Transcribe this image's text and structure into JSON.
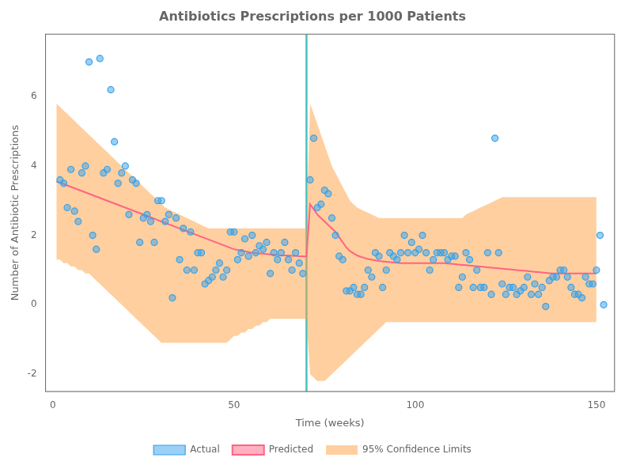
{
  "chart_data": {
    "type": "line",
    "title": "Antibiotics Prescriptions per 1000 Patients",
    "xlabel": "Time (weeks)",
    "ylabel": "Number of Antibiotic Prescriptions",
    "xlim": [
      -2,
      155
    ],
    "ylim": [
      -2.5,
      7.8
    ],
    "xticks": [
      0,
      50,
      100,
      150
    ],
    "yticks": [
      -2,
      0,
      2,
      4,
      6
    ],
    "grid": false,
    "legend": "bottom",
    "intervention_x": 70,
    "series": [
      {
        "name": "Actual",
        "type": "scatter",
        "x": [
          2,
          3,
          4,
          5,
          6,
          7,
          8,
          9,
          10,
          11,
          12,
          13,
          14,
          15,
          16,
          17,
          18,
          19,
          20,
          21,
          22,
          23,
          24,
          25,
          26,
          27,
          28,
          29,
          30,
          31,
          32,
          33,
          34,
          35,
          36,
          37,
          38,
          39,
          40,
          41,
          42,
          43,
          44,
          45,
          46,
          47,
          48,
          49,
          50,
          51,
          52,
          53,
          54,
          55,
          56,
          57,
          58,
          59,
          60,
          61,
          62,
          63,
          64,
          65,
          66,
          67,
          68,
          69,
          71,
          72,
          73,
          74,
          75,
          76,
          77,
          78,
          79,
          80,
          81,
          82,
          83,
          84,
          85,
          86,
          87,
          88,
          89,
          90,
          91,
          92,
          93,
          94,
          95,
          96,
          97,
          98,
          99,
          100,
          101,
          102,
          103,
          104,
          105,
          106,
          107,
          108,
          109,
          110,
          111,
          112,
          113,
          114,
          115,
          116,
          117,
          118,
          119,
          120,
          121,
          122,
          123,
          124,
          125,
          126,
          127,
          128,
          129,
          130,
          131,
          132,
          133,
          134,
          135,
          136,
          137,
          138,
          139,
          140,
          141,
          142,
          143,
          144,
          145,
          146,
          147,
          148,
          149,
          150,
          151,
          152
        ],
        "values": [
          3.6,
          3.5,
          2.8,
          3.9,
          2.7,
          2.4,
          3.8,
          4.0,
          7.0,
          2.0,
          1.6,
          7.1,
          3.8,
          3.9,
          6.2,
          4.7,
          3.5,
          3.8,
          4.0,
          2.6,
          3.6,
          3.5,
          1.8,
          2.5,
          2.6,
          2.4,
          1.8,
          3.0,
          3.0,
          2.4,
          2.6,
          0.2,
          2.5,
          1.3,
          2.2,
          1.0,
          2.1,
          1.0,
          1.5,
          1.5,
          0.6,
          0.7,
          0.8,
          1.0,
          1.2,
          0.8,
          1.0,
          2.1,
          2.1,
          1.3,
          1.5,
          1.9,
          1.4,
          2.0,
          1.5,
          1.7,
          1.6,
          1.8,
          0.9,
          1.5,
          1.3,
          1.5,
          1.8,
          1.3,
          1.0,
          1.5,
          1.2,
          0.9,
          3.6,
          4.8,
          2.8,
          2.9,
          3.3,
          3.2,
          2.5,
          2.0,
          1.4,
          1.3,
          0.4,
          0.4,
          0.5,
          0.3,
          0.3,
          0.5,
          1.0,
          0.8,
          1.5,
          1.4,
          0.5,
          1.0,
          1.5,
          1.4,
          1.3,
          1.5,
          2.0,
          1.5,
          1.8,
          1.5,
          1.6,
          2.0,
          1.5,
          1.0,
          1.3,
          1.5,
          1.5,
          1.5,
          1.3,
          1.4,
          1.4,
          0.5,
          0.8,
          1.5,
          1.3,
          0.5,
          1.0,
          0.5,
          0.5,
          1.5,
          0.3,
          4.8,
          1.5,
          0.6,
          0.3,
          0.5,
          0.5,
          0.3,
          0.4,
          0.5,
          0.8,
          0.3,
          0.6,
          0.3,
          0.5,
          -0.05,
          0.7,
          0.8,
          0.8,
          1.0,
          1.0,
          0.8,
          0.5,
          0.3,
          0.3,
          0.2,
          0.8,
          0.6,
          0.6,
          1.0,
          2.0,
          0.0
        ]
      },
      {
        "name": "Predicted",
        "type": "line",
        "x": [
          1,
          2,
          3,
          4,
          5,
          6,
          7,
          8,
          9,
          10,
          11,
          12,
          13,
          14,
          15,
          16,
          17,
          18,
          19,
          20,
          21,
          22,
          23,
          24,
          25,
          26,
          27,
          28,
          29,
          30,
          31,
          32,
          33,
          34,
          35,
          36,
          37,
          38,
          39,
          40,
          41,
          42,
          43,
          44,
          45,
          46,
          47,
          48,
          49,
          50,
          51,
          52,
          53,
          54,
          55,
          56,
          57,
          58,
          59,
          60,
          61,
          62,
          63,
          64,
          65,
          66,
          67,
          68,
          69,
          70,
          71,
          72,
          73,
          74,
          75,
          76,
          77,
          78,
          79,
          80,
          81,
          82,
          83,
          84,
          85,
          86,
          87,
          88,
          89,
          90,
          91,
          92,
          93,
          94,
          95,
          96,
          97,
          98,
          99,
          100,
          101,
          102,
          103,
          104,
          105,
          106,
          107,
          108,
          109,
          110,
          111,
          112,
          113,
          114,
          115,
          116,
          117,
          118,
          119,
          120,
          121,
          122,
          123,
          124,
          125,
          126,
          127,
          128,
          129,
          130,
          131,
          132,
          133,
          134,
          135,
          136,
          137,
          138,
          139,
          140,
          141,
          142,
          143,
          144,
          145,
          146,
          147,
          148,
          149,
          150
        ],
        "values": [
          3.55,
          3.52,
          3.48,
          3.44,
          3.4,
          3.36,
          3.32,
          3.28,
          3.24,
          3.2,
          3.16,
          3.12,
          3.08,
          3.04,
          3.0,
          2.96,
          2.92,
          2.88,
          2.84,
          2.8,
          2.76,
          2.72,
          2.68,
          2.64,
          2.6,
          2.56,
          2.52,
          2.48,
          2.44,
          2.4,
          2.36,
          2.32,
          2.28,
          2.24,
          2.2,
          2.16,
          2.12,
          2.08,
          2.04,
          2.0,
          1.96,
          1.92,
          1.88,
          1.84,
          1.8,
          1.76,
          1.72,
          1.68,
          1.64,
          1.6,
          1.58,
          1.56,
          1.54,
          1.52,
          1.5,
          1.49,
          1.48,
          1.47,
          1.46,
          1.45,
          1.44,
          1.43,
          1.42,
          1.42,
          1.42,
          1.41,
          1.41,
          1.4,
          1.4,
          1.39,
          2.9,
          2.75,
          2.6,
          2.5,
          2.4,
          2.3,
          2.2,
          2.1,
          1.95,
          1.8,
          1.65,
          1.55,
          1.48,
          1.42,
          1.38,
          1.35,
          1.32,
          1.3,
          1.28,
          1.26,
          1.25,
          1.24,
          1.23,
          1.22,
          1.21,
          1.2,
          1.2,
          1.2,
          1.2,
          1.2,
          1.2,
          1.2,
          1.2,
          1.2,
          1.2,
          1.2,
          1.2,
          1.2,
          1.19,
          1.18,
          1.17,
          1.16,
          1.15,
          1.14,
          1.13,
          1.12,
          1.11,
          1.1,
          1.09,
          1.08,
          1.07,
          1.06,
          1.05,
          1.04,
          1.03,
          1.02,
          1.01,
          1.0,
          0.99,
          0.98,
          0.97,
          0.96,
          0.95,
          0.94,
          0.93,
          0.92,
          0.91,
          0.9,
          0.9,
          0.9,
          0.9,
          0.9,
          0.9,
          0.9,
          0.9,
          0.9,
          0.9,
          0.9,
          0.9,
          0.9
        ]
      },
      {
        "name": "95% Confidence Limits",
        "type": "area",
        "x": [
          1,
          2,
          3,
          4,
          5,
          6,
          7,
          8,
          9,
          10,
          11,
          12,
          13,
          14,
          15,
          16,
          17,
          18,
          19,
          20,
          21,
          22,
          23,
          24,
          25,
          26,
          27,
          28,
          29,
          30,
          31,
          32,
          33,
          34,
          35,
          36,
          37,
          38,
          39,
          40,
          41,
          42,
          43,
          44,
          45,
          46,
          47,
          48,
          49,
          50,
          51,
          52,
          53,
          54,
          55,
          56,
          57,
          58,
          59,
          60,
          61,
          62,
          63,
          64,
          65,
          66,
          67,
          68,
          69,
          70,
          71,
          72,
          73,
          74,
          75,
          76,
          77,
          78,
          79,
          80,
          81,
          82,
          83,
          84,
          85,
          86,
          87,
          88,
          89,
          90,
          91,
          92,
          93,
          94,
          95,
          96,
          97,
          98,
          99,
          100,
          101,
          102,
          103,
          104,
          105,
          106,
          107,
          108,
          109,
          110,
          111,
          112,
          113,
          114,
          115,
          116,
          117,
          118,
          119,
          120,
          121,
          122,
          123,
          124,
          125,
          126,
          127,
          128,
          129,
          130,
          131,
          132,
          133,
          134,
          135,
          136,
          137,
          138,
          139,
          140,
          141,
          142,
          143,
          144,
          145,
          146,
          147,
          148,
          149,
          150
        ],
        "upper": [
          5.8,
          5.7,
          5.6,
          5.5,
          5.4,
          5.3,
          5.2,
          5.1,
          5.0,
          4.9,
          4.8,
          4.7,
          4.6,
          4.5,
          4.4,
          4.3,
          4.2,
          4.1,
          4.0,
          3.9,
          3.8,
          3.7,
          3.6,
          3.5,
          3.4,
          3.3,
          3.2,
          3.1,
          3.0,
          2.9,
          2.8,
          2.75,
          2.7,
          2.65,
          2.6,
          2.55,
          2.5,
          2.45,
          2.4,
          2.35,
          2.3,
          2.25,
          2.2,
          2.2,
          2.2,
          2.2,
          2.2,
          2.2,
          2.2,
          2.2,
          2.2,
          2.2,
          2.2,
          2.2,
          2.2,
          2.2,
          2.2,
          2.2,
          2.2,
          2.2,
          2.2,
          2.2,
          2.2,
          2.2,
          2.2,
          2.2,
          2.2,
          2.2,
          2.2,
          2.2,
          5.8,
          5.5,
          5.2,
          4.9,
          4.6,
          4.3,
          4.0,
          3.8,
          3.6,
          3.4,
          3.2,
          3.0,
          2.9,
          2.8,
          2.75,
          2.7,
          2.65,
          2.6,
          2.55,
          2.5,
          2.5,
          2.5,
          2.5,
          2.5,
          2.5,
          2.5,
          2.5,
          2.5,
          2.5,
          2.5,
          2.5,
          2.5,
          2.5,
          2.5,
          2.5,
          2.5,
          2.5,
          2.5,
          2.5,
          2.5,
          2.5,
          2.5,
          2.5,
          2.6,
          2.65,
          2.7,
          2.75,
          2.8,
          2.85,
          2.9,
          2.95,
          3.0,
          3.05,
          3.1,
          3.1,
          3.1,
          3.1,
          3.1,
          3.1,
          3.1,
          3.1,
          3.1,
          3.1,
          3.1,
          3.1,
          3.1,
          3.1,
          3.1,
          3.1,
          3.1,
          3.1,
          3.1,
          3.1,
          3.1,
          3.1,
          3.1,
          3.1,
          3.1,
          3.1,
          3.1
        ],
        "lower": [
          1.3,
          1.3,
          1.2,
          1.2,
          1.1,
          1.1,
          1.0,
          1.0,
          0.9,
          0.9,
          0.8,
          0.7,
          0.6,
          0.5,
          0.4,
          0.3,
          0.2,
          0.1,
          0.0,
          -0.1,
          -0.2,
          -0.3,
          -0.4,
          -0.5,
          -0.6,
          -0.7,
          -0.8,
          -0.9,
          -1.0,
          -1.1,
          -1.1,
          -1.1,
          -1.1,
          -1.1,
          -1.1,
          -1.1,
          -1.1,
          -1.1,
          -1.1,
          -1.1,
          -1.1,
          -1.1,
          -1.1,
          -1.1,
          -1.1,
          -1.1,
          -1.1,
          -1.1,
          -1.0,
          -0.9,
          -0.9,
          -0.8,
          -0.8,
          -0.7,
          -0.7,
          -0.6,
          -0.6,
          -0.5,
          -0.5,
          -0.4,
          -0.4,
          -0.4,
          -0.4,
          -0.4,
          -0.4,
          -0.4,
          -0.4,
          -0.4,
          -0.4,
          -0.4,
          -2.0,
          -2.1,
          -2.2,
          -2.2,
          -2.2,
          -2.1,
          -2.0,
          -1.9,
          -1.8,
          -1.7,
          -1.6,
          -1.5,
          -1.4,
          -1.3,
          -1.2,
          -1.1,
          -1.0,
          -0.9,
          -0.8,
          -0.7,
          -0.6,
          -0.5,
          -0.5,
          -0.5,
          -0.5,
          -0.5,
          -0.5,
          -0.5,
          -0.5,
          -0.5,
          -0.5,
          -0.5,
          -0.5,
          -0.5,
          -0.5,
          -0.5,
          -0.5,
          -0.5,
          -0.5,
          -0.5,
          -0.5,
          -0.5,
          -0.5,
          -0.5,
          -0.5,
          -0.5,
          -0.5,
          -0.5,
          -0.5,
          -0.5,
          -0.5,
          -0.5,
          -0.5,
          -0.5,
          -0.5,
          -0.5,
          -0.5,
          -0.5,
          -0.5,
          -0.5,
          -0.5,
          -0.5,
          -0.5,
          -0.5,
          -0.5,
          -0.5,
          -0.5,
          -0.5,
          -0.5,
          -0.5,
          -0.5,
          -0.5,
          -0.5,
          -0.5,
          -0.5,
          -0.5,
          -0.5,
          -0.5,
          -0.5,
          -0.5
        ]
      }
    ]
  }
}
